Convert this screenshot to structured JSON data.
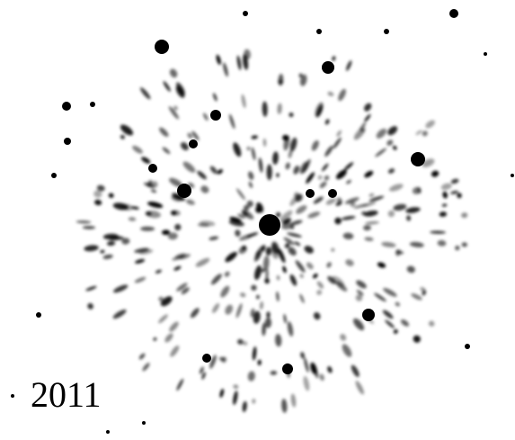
{
  "caption": "2011"
}
